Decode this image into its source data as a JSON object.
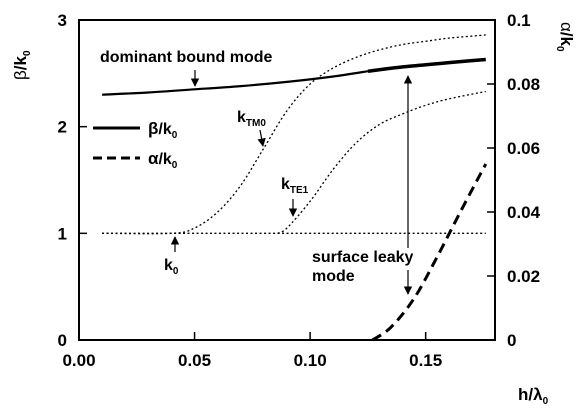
{
  "chart_data": {
    "type": "line",
    "xlabel_base": "h/",
    "xlabel_sym": "λ",
    "xlabel_sub": "0",
    "ylabel_left_sym": "β",
    "ylabel_left_rest": "/k",
    "ylabel_left_sub": "0",
    "ylabel_right_sym": "α",
    "ylabel_right_rest": "/k",
    "ylabel_right_sub": "0",
    "xlim": [
      0,
      0.18
    ],
    "ylim_left": [
      0,
      3
    ],
    "ylim_right": [
      0,
      0.1
    ],
    "x_ticks": [
      "0.00",
      "0.05",
      "0.10",
      "0.15"
    ],
    "y_left_ticks": [
      "0",
      "1",
      "2",
      "3"
    ],
    "y_right_ticks": [
      "0",
      "0.02",
      "0.04",
      "0.06",
      "0.08",
      "0.1"
    ],
    "legend": [
      {
        "sym": "β",
        "rest": "/k",
        "sub": "0",
        "style": "solid-thick"
      },
      {
        "sym": "α",
        "rest": "/k",
        "sub": "0",
        "style": "dashed-thick"
      }
    ],
    "annotations": {
      "dominant": "dominant bound mode",
      "ktm0_base": "k",
      "ktm0_sub": "TM0",
      "kte1_base": "k",
      "kte1_sub": "TE1",
      "k0_base": "k",
      "k0_sub": "0",
      "surface_line1": "surface leaky",
      "surface_line2": "mode"
    },
    "series": [
      {
        "id": "beta",
        "axis": "left",
        "style": "solid",
        "width": 2.2,
        "x": [
          0.01,
          0.03,
          0.05,
          0.07,
          0.09,
          0.11,
          0.125
        ],
        "y": [
          2.3,
          2.32,
          2.35,
          2.38,
          2.42,
          2.47,
          2.52
        ]
      },
      {
        "id": "beta_leaky",
        "axis": "left",
        "style": "solid",
        "width": 3.5,
        "x": [
          0.125,
          0.14,
          0.155,
          0.165,
          0.176
        ],
        "y": [
          2.52,
          2.56,
          2.59,
          2.61,
          2.63
        ]
      },
      {
        "id": "ktm0",
        "axis": "left",
        "style": "dotted",
        "width": 1.3,
        "x": [
          0.01,
          0.04,
          0.05,
          0.06,
          0.07,
          0.08,
          0.09,
          0.1,
          0.11,
          0.12,
          0.13,
          0.14,
          0.15,
          0.16,
          0.176
        ],
        "y": [
          1.0,
          1.0,
          1.05,
          1.2,
          1.45,
          1.8,
          2.15,
          2.4,
          2.55,
          2.65,
          2.72,
          2.77,
          2.8,
          2.83,
          2.86
        ]
      },
      {
        "id": "kte1",
        "axis": "left",
        "style": "dotted",
        "width": 1.3,
        "x": [
          0.086,
          0.09,
          0.1,
          0.11,
          0.12,
          0.13,
          0.14,
          0.15,
          0.16,
          0.176
        ],
        "y": [
          1.0,
          1.05,
          1.3,
          1.6,
          1.85,
          2.02,
          2.12,
          2.2,
          2.26,
          2.33
        ]
      },
      {
        "id": "k0",
        "axis": "left",
        "style": "dotted",
        "width": 1.3,
        "x": [
          0.01,
          0.176
        ],
        "y": [
          1.0,
          1.0
        ]
      },
      {
        "id": "alpha",
        "axis": "right",
        "style": "dashed",
        "width": 3,
        "x": [
          0.127,
          0.135,
          0.145,
          0.155,
          0.165,
          0.176
        ],
        "y": [
          0.0,
          0.004,
          0.013,
          0.026,
          0.04,
          0.055
        ]
      }
    ]
  }
}
